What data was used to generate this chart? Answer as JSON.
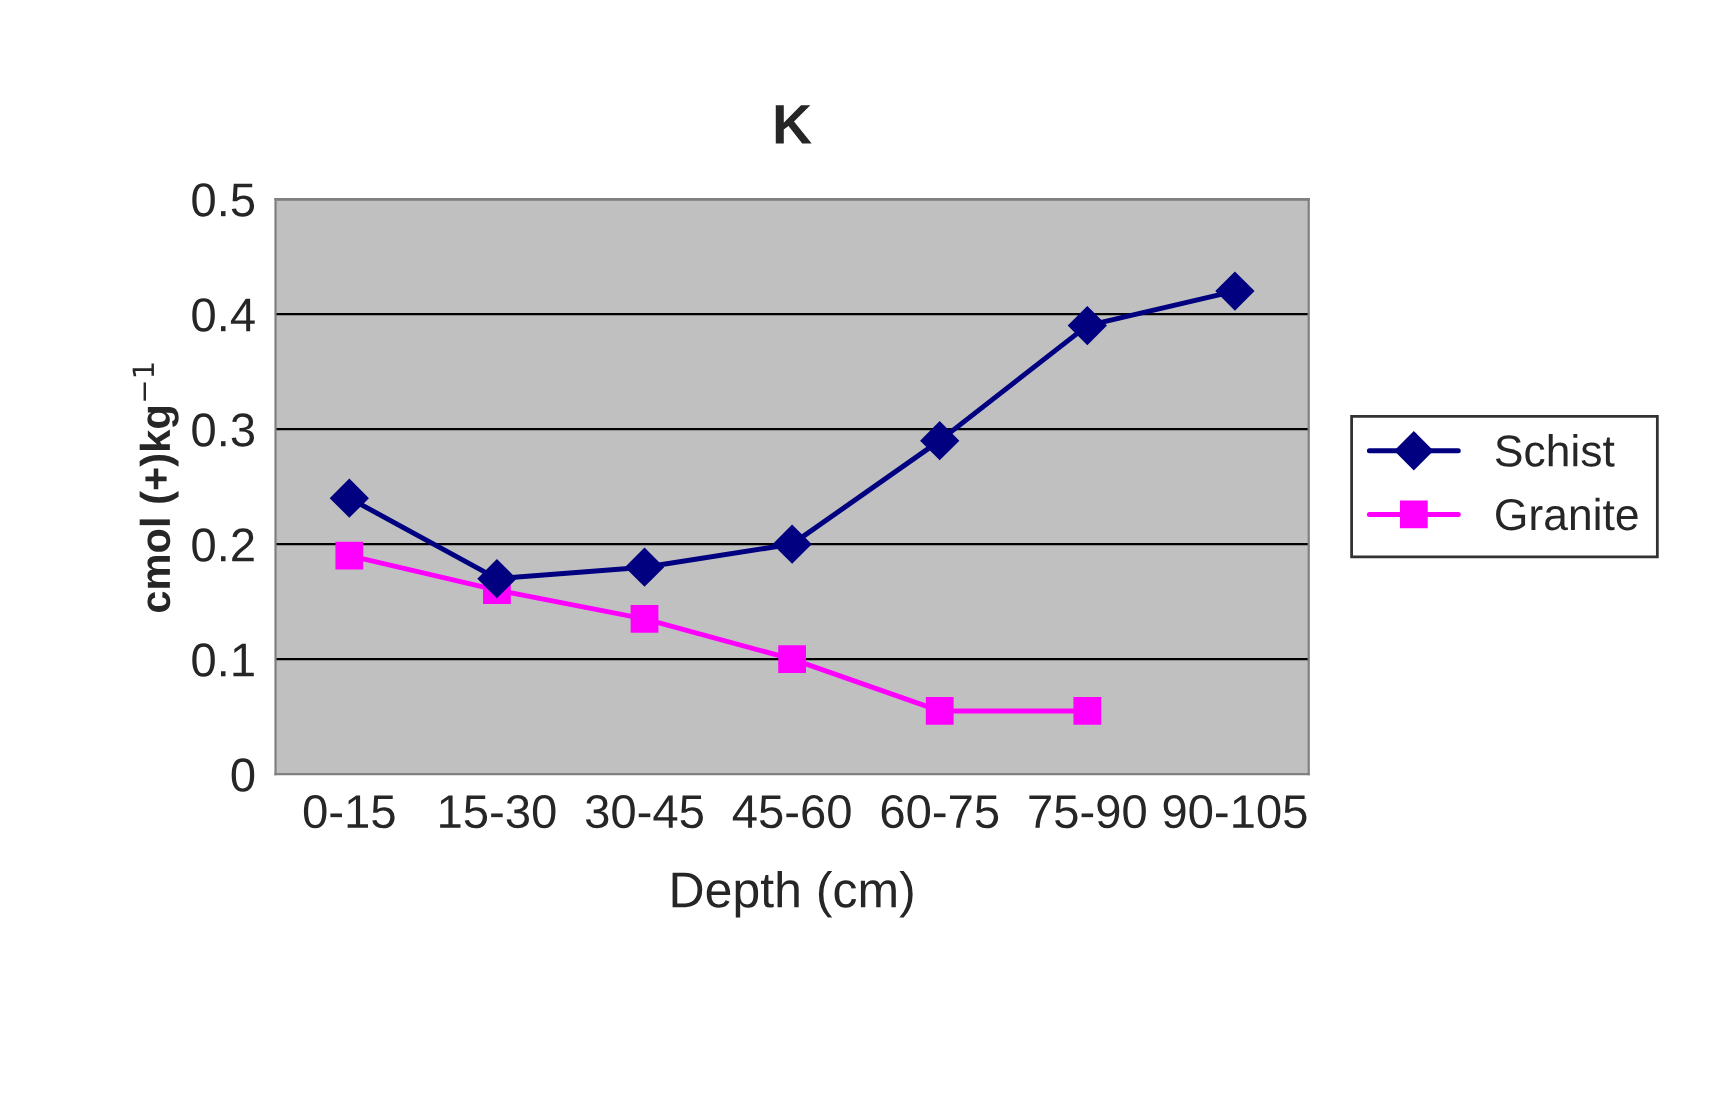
{
  "chart_data": {
    "type": "line",
    "title": "K",
    "xlabel": "Depth (cm)",
    "ylabel": "cmol (+)kg$^{−1}$",
    "categories": [
      "0-15",
      "15-30",
      "30-45",
      "45-60",
      "60-75",
      "75-90",
      "90-105"
    ],
    "series": [
      {
        "name": "Schist",
        "color": "#000080",
        "marker": "diamond",
        "values": [
          0.24,
          0.17,
          0.18,
          0.2,
          0.29,
          0.39,
          0.42
        ]
      },
      {
        "name": "Granite",
        "color": "#ff00ff",
        "marker": "square",
        "values": [
          0.19,
          0.16,
          0.135,
          0.1,
          0.055,
          0.055,
          null
        ]
      }
    ],
    "ylim": [
      0,
      0.5
    ],
    "yticks": [
      0,
      0.1,
      0.2,
      0.3,
      0.4,
      0.5
    ],
    "grid": "y",
    "legend": "right"
  }
}
